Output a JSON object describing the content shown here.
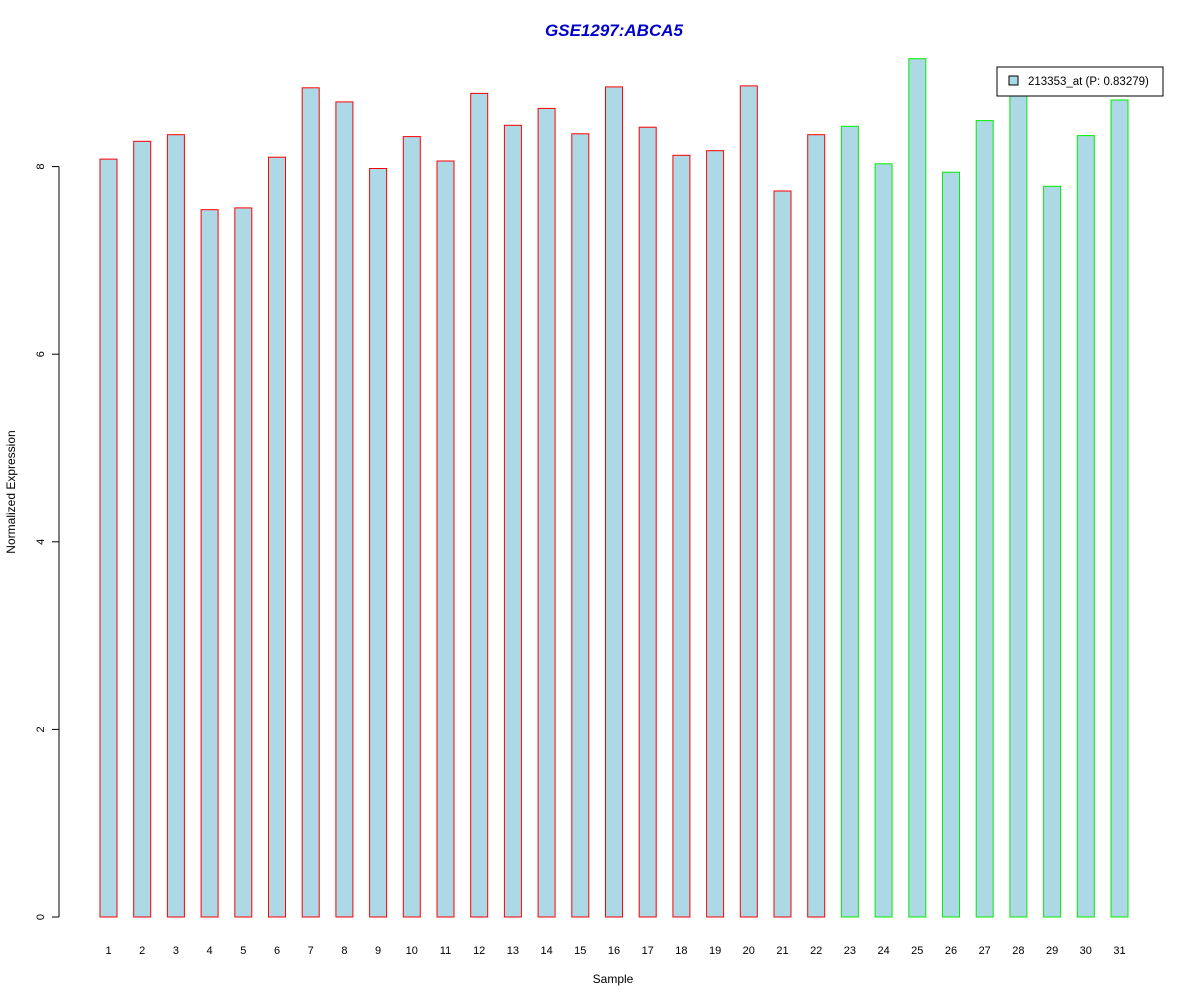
{
  "colors": {
    "bar_fill": "#add8e6",
    "group1_border": "#ff0000",
    "group2_border": "#00ee00",
    "title": "#0000cd",
    "axis": "#000000"
  },
  "chart_data": {
    "type": "bar",
    "title": "GSE1297:ABCA5",
    "xlabel": "Sample",
    "ylabel": "Normalized Expression",
    "ylim": [
      0,
      9.2
    ],
    "yticks": [
      0,
      2,
      4,
      6,
      8
    ],
    "grid": false,
    "legend_position": "top-right",
    "categories": [
      "1",
      "2",
      "3",
      "4",
      "5",
      "6",
      "7",
      "8",
      "9",
      "10",
      "11",
      "12",
      "13",
      "14",
      "15",
      "16",
      "17",
      "18",
      "19",
      "20",
      "21",
      "22",
      "23",
      "24",
      "25",
      "26",
      "27",
      "28",
      "29",
      "30",
      "31"
    ],
    "series": [
      {
        "name": "213353_at (P: 0.83279)",
        "values": [
          8.08,
          8.27,
          8.34,
          7.54,
          7.56,
          8.1,
          8.84,
          8.69,
          7.98,
          8.32,
          8.06,
          8.78,
          8.44,
          8.62,
          8.35,
          8.85,
          8.42,
          8.12,
          8.17,
          8.86,
          7.74,
          8.34,
          8.43,
          8.03,
          9.15,
          7.94,
          8.49,
          8.78,
          7.79,
          8.33,
          8.71
        ]
      }
    ],
    "groups": [
      1,
      1,
      1,
      1,
      1,
      1,
      1,
      1,
      1,
      1,
      1,
      1,
      1,
      1,
      1,
      1,
      1,
      1,
      1,
      1,
      1,
      1,
      2,
      2,
      2,
      2,
      2,
      2,
      2,
      2,
      2
    ]
  }
}
